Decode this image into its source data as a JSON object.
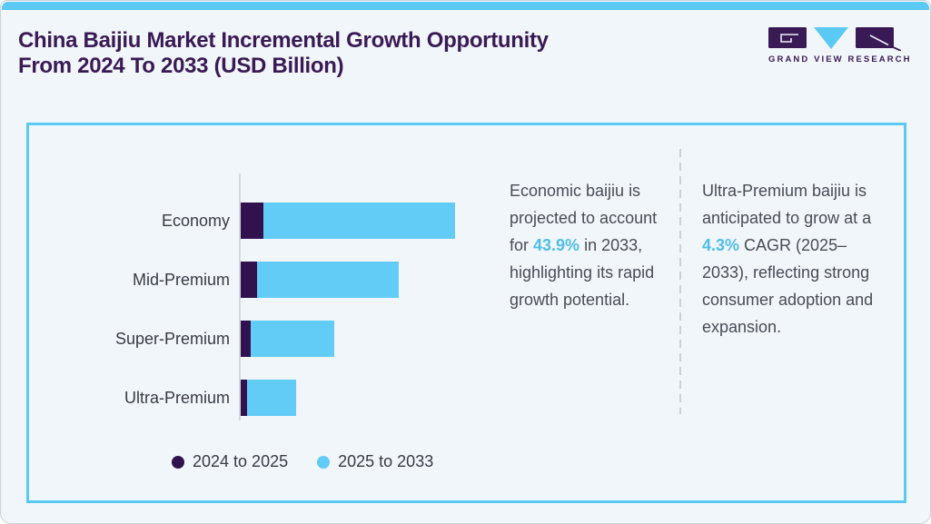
{
  "header": {
    "title": "China Baijiu Market Incremental Growth Opportunity\nFrom 2024 To 2033 (USD Billion)",
    "logo_text": "GRAND VIEW RESEARCH"
  },
  "colors": {
    "background": "#f1f6fa",
    "accent_blue": "#5ac9f4",
    "bar_blue": "#62cbf6",
    "bar_purple": "#31124f",
    "title_purple": "#3a1a55",
    "body_text": "#4b4b55",
    "highlight_blue": "#4fbdec",
    "axis_gray": "#d5d8da"
  },
  "chart_data": {
    "type": "bar",
    "orientation": "horizontal",
    "stacked": true,
    "title": "China Baijiu Market Incremental Growth Opportunity From 2024 To 2033 (USD Billion)",
    "unit": "USD Billion",
    "value_axis_labels_shown": false,
    "value_scale_note": "relative units, largest total (Economy) = 100",
    "categories": [
      "Economy",
      "Mid-Premium",
      "Super-Premium",
      "Ultra-Premium"
    ],
    "series": [
      {
        "name": "2024 to 2025",
        "color": "#31124f",
        "values": [
          10.6,
          7.6,
          4.7,
          3.0
        ]
      },
      {
        "name": "2025 to 2033",
        "color": "#62cbf6",
        "values": [
          89.4,
          66.1,
          39.0,
          22.9
        ]
      }
    ],
    "legend_position": "bottom"
  },
  "callouts": [
    {
      "before": "Economic baijiu is projected to account for ",
      "highlight": "43.9%",
      "after": " in 2033, highlighting its rapid growth potential."
    },
    {
      "before": "Ultra-Premium baijiu is anticipated to grow at a ",
      "highlight": "4.3%",
      "after": " CAGR (2025–2033), reflecting strong consumer adoption and expansion."
    }
  ]
}
